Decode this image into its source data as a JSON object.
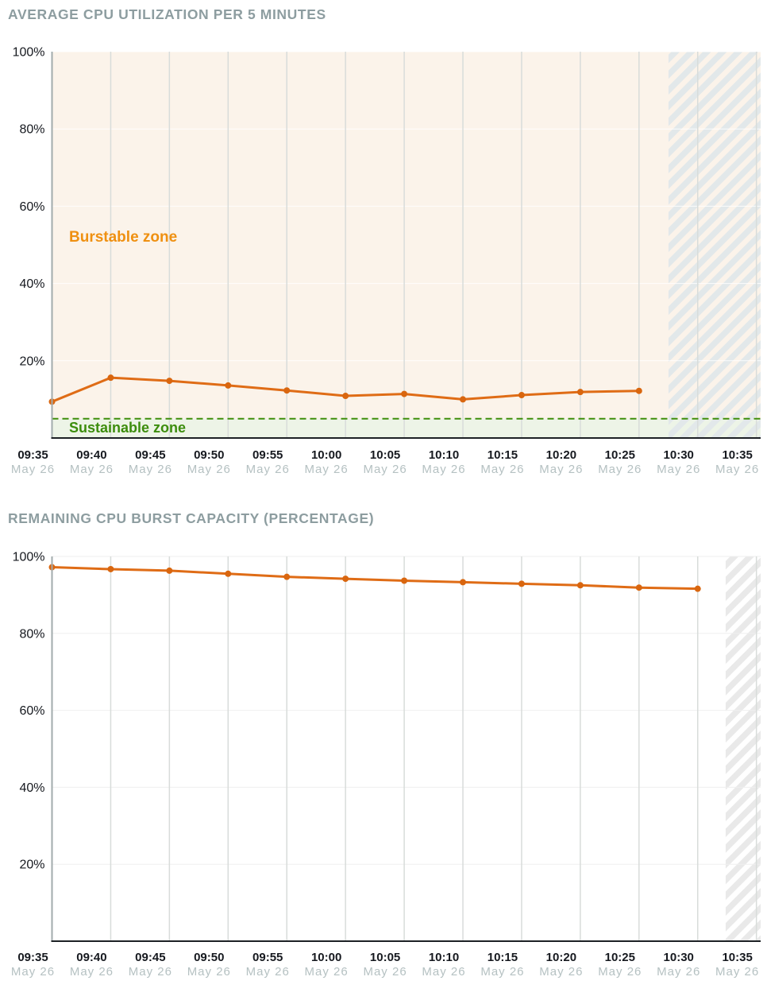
{
  "chart_data": [
    {
      "type": "line",
      "title": "AVERAGE CPU UTILIZATION PER 5 MINUTES",
      "x_axis_ticks": [
        "09:35",
        "09:40",
        "09:45",
        "09:50",
        "09:55",
        "10:00",
        "10:05",
        "10:10",
        "10:15",
        "10:20",
        "10:25",
        "10:30",
        "10:35"
      ],
      "x_date_label": "May 26",
      "x": [
        "09:35",
        "09:40",
        "09:45",
        "09:50",
        "09:55",
        "10:00",
        "10:05",
        "10:10",
        "10:15",
        "10:20",
        "10:25"
      ],
      "values": [
        9.4,
        15.6,
        14.8,
        13.6,
        12.3,
        10.9,
        11.4,
        10.0,
        11.1,
        11.9,
        12.2
      ],
      "ylim": [
        0,
        100
      ],
      "yticks": [
        20,
        40,
        60,
        80,
        100
      ],
      "ytick_suffix": "%",
      "grid": true,
      "legend_position": "none",
      "annotations": {
        "burstable_zone_label": "Burstable zone",
        "sustainable_zone_label": "Sustainable zone"
      },
      "sustainable_threshold": 5,
      "future_region_start_frac": 0.87,
      "colors": {
        "line": "#df6c16",
        "marker": "#d9660f",
        "burstable_bg": "#fbf3ea",
        "sustainable_bg": "#edf4e7",
        "threshold_line": "#3f8e0c",
        "future_hatch": "#e2e8ea",
        "h_grid": "rgba(255,255,255,0.85)"
      }
    },
    {
      "type": "line",
      "title": "REMAINING CPU BURST CAPACITY (PERCENTAGE)",
      "x_axis_ticks": [
        "09:35",
        "09:40",
        "09:45",
        "09:50",
        "09:55",
        "10:00",
        "10:05",
        "10:10",
        "10:15",
        "10:20",
        "10:25",
        "10:30",
        "10:35"
      ],
      "x_date_label": "May 26",
      "x": [
        "09:35",
        "09:40",
        "09:45",
        "09:50",
        "09:55",
        "10:00",
        "10:05",
        "10:10",
        "10:15",
        "10:20",
        "10:25",
        "10:30"
      ],
      "values": [
        97.2,
        96.7,
        96.3,
        95.5,
        94.7,
        94.2,
        93.7,
        93.3,
        92.9,
        92.5,
        91.9,
        91.6
      ],
      "ylim": [
        0,
        100
      ],
      "yticks": [
        20,
        40,
        60,
        80,
        100
      ],
      "ytick_suffix": "%",
      "grid": true,
      "legend_position": "none",
      "future_region_start_frac": 0.9506,
      "colors": {
        "line": "#df6c16",
        "marker": "#d9660f",
        "bg": "#ffffff",
        "future_hatch": "#e9e9e9",
        "h_grid": "#efefef"
      }
    }
  ],
  "style": {
    "title_color": "#8d9da0",
    "axis_text": "#16191f",
    "date_text": "#b5c1c2",
    "v_grid": "#d8dcda",
    "y_axis_line": "#a2abac",
    "x_axis_line": "#1d2125"
  }
}
